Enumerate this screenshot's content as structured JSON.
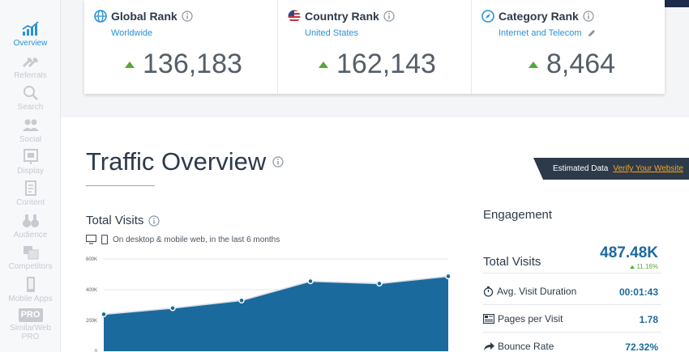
{
  "sidebar": {
    "items": [
      {
        "label": "Overview",
        "icon": "overview-chart-icon",
        "active": true
      },
      {
        "label": "Referrals",
        "icon": "referrals-arrows-icon"
      },
      {
        "label": "Search",
        "icon": "search-icon"
      },
      {
        "label": "Social",
        "icon": "social-people-icon"
      },
      {
        "label": "Display",
        "icon": "display-ad-icon"
      },
      {
        "label": "Content",
        "icon": "content-document-icon"
      },
      {
        "label": "Audience",
        "icon": "audience-binoculars-icon"
      },
      {
        "label": "Competitors",
        "icon": "competitors-icon"
      },
      {
        "label": "Mobile Apps",
        "icon": "mobile-phone-icon"
      },
      {
        "label": "SimilarWeb PRO",
        "badge": "PRO",
        "icon": "pro-badge-icon"
      }
    ]
  },
  "ranks": {
    "global": {
      "title": "Global Rank",
      "sub": "Worldwide",
      "value": "136,183",
      "icon": "globe-icon"
    },
    "country": {
      "title": "Country Rank",
      "sub": "United States",
      "value": "162,143",
      "icon": "us-flag-icon"
    },
    "category": {
      "title": "Category Rank",
      "sub": "Internet and Telecom",
      "value": "8,464",
      "icon": "compass-icon"
    }
  },
  "traffic": {
    "title": "Traffic Overview",
    "estimated_label": "Estimated Data",
    "verify_link": "Verify Your Website",
    "total_visits_title": "Total Visits",
    "subtitle": "On desktop & mobile web, in the last 6 months"
  },
  "chart_data": {
    "type": "area",
    "x": [
      1,
      2,
      3,
      4,
      5,
      6
    ],
    "values": [
      240000,
      280000,
      330000,
      455000,
      440000,
      487000
    ],
    "ytick_labels": [
      "600K",
      "400K",
      "200K",
      "0"
    ],
    "yticks": [
      600000,
      400000,
      200000,
      0
    ],
    "ylim": [
      0,
      600000
    ],
    "fill_color": "#1b6a9e"
  },
  "engagement": {
    "title": "Engagement",
    "total_visits_label": "Total Visits",
    "total_visits_value": "487.48K",
    "total_visits_change": "11.16%",
    "rows": [
      {
        "label": "Avg. Visit Duration",
        "value": "00:01:43",
        "icon": "stopwatch-icon"
      },
      {
        "label": "Pages per Visit",
        "value": "1.78",
        "icon": "pages-icon"
      },
      {
        "label": "Bounce Rate",
        "value": "72.32%",
        "icon": "bounce-arrow-icon"
      }
    ]
  },
  "colors": {
    "accent": "#2a92d6",
    "positive": "#55a832",
    "dark": "#2d3a4a"
  }
}
